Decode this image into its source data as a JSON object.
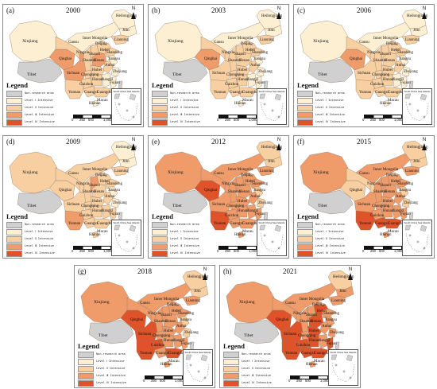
{
  "legend": {
    "title": "Legend",
    "items": [
      {
        "label": "Non-research area",
        "color": "#d0d0d0"
      },
      {
        "label": "Level Ⅰ Intensive",
        "color": "#fdf0d2"
      },
      {
        "label": "Level Ⅱ Intensive",
        "color": "#f8cfa0"
      },
      {
        "label": "Level Ⅲ Intensive",
        "color": "#ef9c6a"
      },
      {
        "label": "Level Ⅳ Intensive",
        "color": "#e0522a"
      }
    ]
  },
  "north_label": "N",
  "inset_label": "South China Sea Islands",
  "scale": {
    "ticks": [
      "0",
      "250",
      "500",
      "1,000"
    ],
    "unit": "Miles"
  },
  "labels": {
    "Xinjiang": "Xinjiang",
    "Tibet": "Tibet",
    "Qinghai": "Qinghai",
    "Gansu": "Gansu",
    "InnerMongolia": "Inner Mongolia",
    "Heilongjiang": "Heilongjiang",
    "Jilin": "Jilin",
    "Liaoning": "Liaoning",
    "Beijing": "Beijing",
    "Hebei": "Hebei",
    "Shanxi": "Shanxi",
    "Ningxia": "Ningxia",
    "Shaanxi": "Shaanxi",
    "Henan": "Henan",
    "Shandong": "Shandong",
    "Sichuan": "Sichuan",
    "Chongqing": "Chongqing",
    "Hubei": "Hubei",
    "Anhui": "Anhui",
    "Jiangsu": "Jiangsu",
    "Zhejiang": "Zhejiang",
    "Hunan": "Hunan",
    "Jiangxi": "Jiangxi",
    "Fujian": "Fujian",
    "Guizhou": "Guizhou",
    "Yunnan": "Yunnan",
    "Guangxi": "Guangxi",
    "Guangdong": "Guangdong",
    "Hainan": "Hainan",
    "Taiwan": "Taiwan",
    "Macau": "Macau"
  },
  "panels": [
    {
      "id": "(a)",
      "year": "2000",
      "fills": {
        "Xinjiang": 1,
        "Tibet": 0,
        "Qinghai": 3,
        "Gansu": 2,
        "InnerMongolia": 1,
        "Heilongjiang": 1,
        "Jilin": 1,
        "Liaoning": 2,
        "Beijing": 2,
        "Hebei": 2,
        "Shanxi": 2,
        "Ningxia": 3,
        "Shaanxi": 2,
        "Henan": 3,
        "Shandong": 2,
        "Sichuan": 3,
        "Chongqing": 2,
        "Hubei": 2,
        "Anhui": 2,
        "Jiangsu": 1,
        "Zhejiang": 1,
        "Hunan": 2,
        "Jiangxi": 1,
        "Fujian": 1,
        "Guizhou": 2,
        "Yunnan": 2,
        "Guangxi": 2,
        "Guangdong": 2,
        "Hainan": 1,
        "Taiwan": 0
      }
    },
    {
      "id": "(b)",
      "year": "2003",
      "fills": {
        "Xinjiang": 1,
        "Tibet": 0,
        "Qinghai": 3,
        "Gansu": 2,
        "InnerMongolia": 1,
        "Heilongjiang": 1,
        "Jilin": 1,
        "Liaoning": 2,
        "Beijing": 2,
        "Hebei": 2,
        "Shanxi": 2,
        "Ningxia": 2,
        "Shaanxi": 2,
        "Henan": 2,
        "Shandong": 2,
        "Sichuan": 2,
        "Chongqing": 2,
        "Hubei": 2,
        "Anhui": 2,
        "Jiangsu": 1,
        "Zhejiang": 1,
        "Hunan": 2,
        "Jiangxi": 1,
        "Fujian": 1,
        "Guizhou": 2,
        "Yunnan": 2,
        "Guangxi": 2,
        "Guangdong": 2,
        "Hainan": 1,
        "Taiwan": 0
      }
    },
    {
      "id": "(c)",
      "year": "2006",
      "fills": {
        "Xinjiang": 1,
        "Tibet": 0,
        "Qinghai": 3,
        "Gansu": 2,
        "InnerMongolia": 1,
        "Heilongjiang": 1,
        "Jilin": 1,
        "Liaoning": 2,
        "Beijing": 2,
        "Hebei": 2,
        "Shanxi": 2,
        "Ningxia": 2,
        "Shaanxi": 2,
        "Henan": 2,
        "Shandong": 2,
        "Sichuan": 2,
        "Chongqing": 2,
        "Hubei": 2,
        "Anhui": 2,
        "Jiangsu": 1,
        "Zhejiang": 1,
        "Hunan": 2,
        "Jiangxi": 1,
        "Fujian": 1,
        "Guizhou": 2,
        "Yunnan": 2,
        "Guangxi": 2,
        "Guangdong": 2,
        "Hainan": 1,
        "Taiwan": 0
      }
    },
    {
      "id": "(d)",
      "year": "2009",
      "fills": {
        "Xinjiang": 2,
        "Tibet": 0,
        "Qinghai": 2,
        "Gansu": 2,
        "InnerMongolia": 2,
        "Heilongjiang": 1,
        "Jilin": 1,
        "Liaoning": 2,
        "Beijing": 2,
        "Hebei": 2,
        "Shanxi": 3,
        "Ningxia": 2,
        "Shaanxi": 2,
        "Henan": 2,
        "Shandong": 2,
        "Sichuan": 2,
        "Chongqing": 2,
        "Hubei": 2,
        "Anhui": 2,
        "Jiangsu": 1,
        "Zhejiang": 1,
        "Hunan": 2,
        "Jiangxi": 2,
        "Fujian": 2,
        "Guizhou": 2,
        "Yunnan": 3,
        "Guangxi": 2,
        "Guangdong": 2,
        "Hainan": 2,
        "Taiwan": 0
      }
    },
    {
      "id": "(e)",
      "year": "2012",
      "fills": {
        "Xinjiang": 3,
        "Tibet": 0,
        "Qinghai": 4,
        "Gansu": 3,
        "InnerMongolia": 3,
        "Heilongjiang": 2,
        "Jilin": 2,
        "Liaoning": 3,
        "Beijing": 3,
        "Hebei": 3,
        "Shanxi": 3,
        "Ningxia": 3,
        "Shaanxi": 3,
        "Henan": 3,
        "Shandong": 3,
        "Sichuan": 3,
        "Chongqing": 3,
        "Hubei": 3,
        "Anhui": 3,
        "Jiangsu": 2,
        "Zhejiang": 2,
        "Hunan": 3,
        "Jiangxi": 3,
        "Fujian": 3,
        "Guizhou": 3,
        "Yunnan": 4,
        "Guangxi": 3,
        "Guangdong": 3,
        "Hainan": 3,
        "Taiwan": 0
      }
    },
    {
      "id": "(f)",
      "year": "2015",
      "fills": {
        "Xinjiang": 3,
        "Tibet": 0,
        "Qinghai": 2,
        "Gansu": 2,
        "InnerMongolia": 3,
        "Heilongjiang": 2,
        "Jilin": 2,
        "Liaoning": 3,
        "Beijing": 2,
        "Hebei": 3,
        "Shanxi": 3,
        "Ningxia": 2,
        "Shaanxi": 3,
        "Henan": 3,
        "Shandong": 3,
        "Sichuan": 3,
        "Chongqing": 3,
        "Hubei": 3,
        "Anhui": 3,
        "Jiangsu": 2,
        "Zhejiang": 2,
        "Hunan": 3,
        "Jiangxi": 3,
        "Fujian": 3,
        "Guizhou": 3,
        "Yunnan": 4,
        "Guangxi": 4,
        "Guangdong": 4,
        "Hainan": 3,
        "Taiwan": 0
      }
    },
    {
      "id": "(g)",
      "year": "2018",
      "fills": {
        "Xinjiang": 3,
        "Tibet": 0,
        "Qinghai": 4,
        "Gansu": 3,
        "InnerMongolia": 3,
        "Heilongjiang": 2,
        "Jilin": 2,
        "Liaoning": 3,
        "Beijing": 3,
        "Hebei": 3,
        "Shanxi": 3,
        "Ningxia": 3,
        "Shaanxi": 3,
        "Henan": 3,
        "Shandong": 3,
        "Sichuan": 4,
        "Chongqing": 3,
        "Hubei": 3,
        "Anhui": 3,
        "Jiangsu": 2,
        "Zhejiang": 2,
        "Hunan": 3,
        "Jiangxi": 3,
        "Fujian": 3,
        "Guizhou": 4,
        "Yunnan": 4,
        "Guangxi": 3,
        "Guangdong": 4,
        "Hainan": 3,
        "Taiwan": 0
      }
    },
    {
      "id": "(h)",
      "year": "2021",
      "fills": {
        "Xinjiang": 3,
        "Tibet": 0,
        "Qinghai": 4,
        "Gansu": 3,
        "InnerMongolia": 3,
        "Heilongjiang": 2,
        "Jilin": 3,
        "Liaoning": 3,
        "Beijing": 3,
        "Hebei": 4,
        "Shanxi": 3,
        "Ningxia": 3,
        "Shaanxi": 3,
        "Henan": 4,
        "Shandong": 3,
        "Sichuan": 4,
        "Chongqing": 3,
        "Hubei": 4,
        "Anhui": 3,
        "Jiangsu": 3,
        "Zhejiang": 3,
        "Hunan": 4,
        "Jiangxi": 3,
        "Fujian": 4,
        "Guizhou": 4,
        "Yunnan": 4,
        "Guangxi": 4,
        "Guangdong": 4,
        "Hainan": 3,
        "Taiwan": 0
      }
    }
  ]
}
